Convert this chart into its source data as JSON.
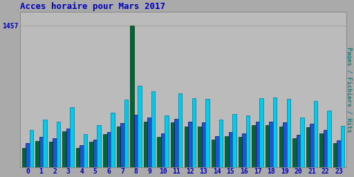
{
  "title": "Acces horaire pour Mars 2017",
  "ylabel_right": "Pages / Fichiers / Hits",
  "ytick_label": "1457",
  "xlabel_values": [
    0,
    1,
    2,
    3,
    4,
    5,
    6,
    7,
    8,
    9,
    10,
    11,
    12,
    13,
    14,
    15,
    16,
    17,
    18,
    19,
    20,
    21,
    22,
    23
  ],
  "pages": [
    200,
    270,
    265,
    370,
    200,
    260,
    340,
    420,
    1457,
    470,
    310,
    460,
    420,
    420,
    280,
    320,
    315,
    430,
    430,
    420,
    295,
    410,
    350,
    245
  ],
  "fichiers": [
    250,
    315,
    300,
    400,
    225,
    285,
    365,
    455,
    540,
    510,
    345,
    500,
    465,
    460,
    320,
    360,
    345,
    465,
    465,
    460,
    335,
    450,
    380,
    278
  ],
  "hits": [
    380,
    490,
    470,
    620,
    340,
    430,
    560,
    695,
    840,
    780,
    530,
    760,
    710,
    700,
    490,
    550,
    530,
    710,
    715,
    700,
    510,
    680,
    580,
    425
  ],
  "color_pages": "#006633",
  "color_fichiers": "#2255cc",
  "color_hits": "#00ccee",
  "bg_color": "#aaaaaa",
  "plot_bg": "#bbbbbb",
  "title_color": "#0000bb",
  "ylabel_color": "#008888",
  "ytick_color": "#0000bb",
  "xtick_color": "#0000bb",
  "bar_width": 0.28,
  "ylim_max": 1600,
  "figwidth": 5.12,
  "figheight": 2.56,
  "dpi": 100
}
